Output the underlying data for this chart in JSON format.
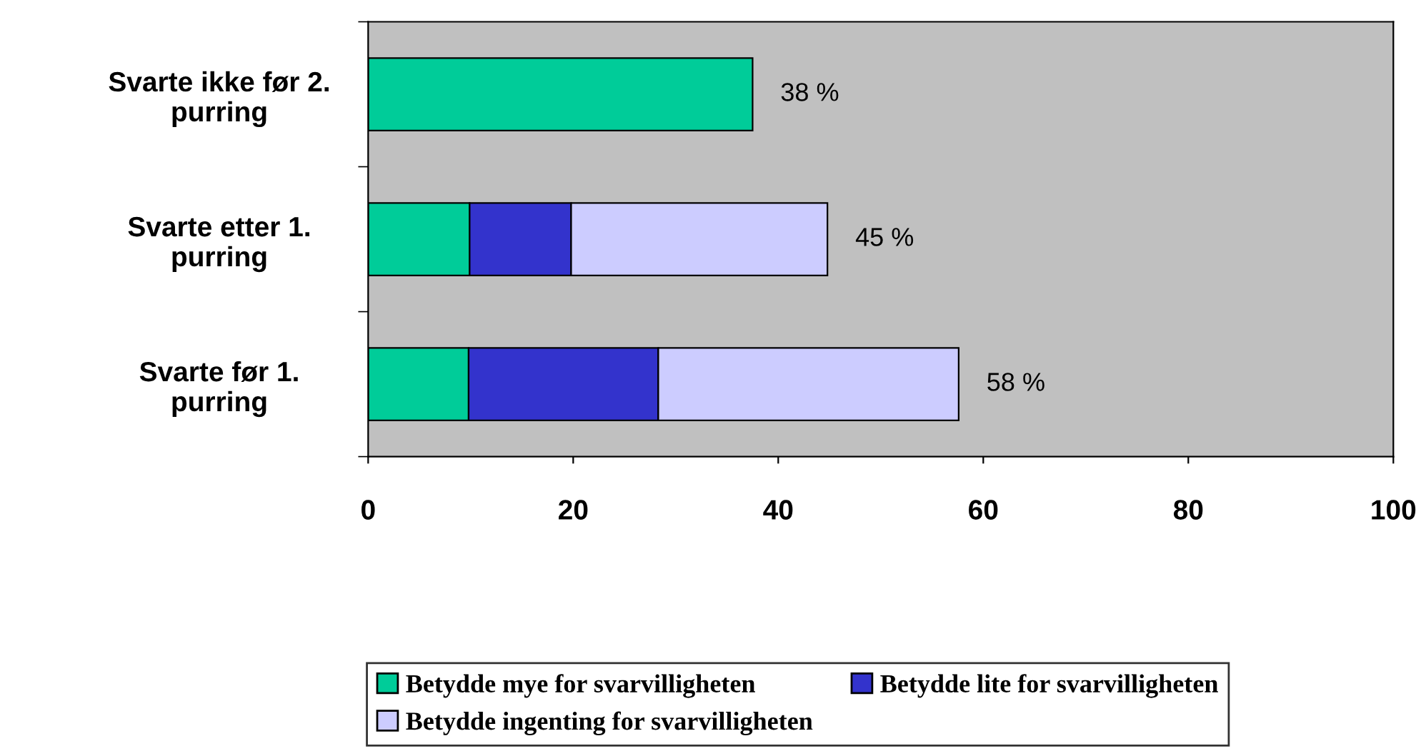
{
  "chart_data": {
    "type": "bar",
    "orientation": "horizontal",
    "stacked": true,
    "categories": [
      "Svarte ikke før 2.\npurring",
      "Svarte etter 1.\npurring",
      "Svarte før 1.\npurring"
    ],
    "series": [
      {
        "name": "Betydde mye for svarvilligheten",
        "color": "#00cc99",
        "values": [
          37.5,
          9.9,
          9.8
        ]
      },
      {
        "name": "Betydde lite for svarvilligheten",
        "color": "#3333cc",
        "values": [
          null,
          9.9,
          18.5
        ]
      },
      {
        "name": "Betydde ingenting for svarvilligheten",
        "color": "#ccccff",
        "values": [
          null,
          25,
          29.3
        ]
      }
    ],
    "totals": [
      "38 %",
      "45 %",
      "58 %"
    ],
    "xlim": [
      0,
      100
    ],
    "xticks": [
      0,
      20,
      40,
      60,
      80,
      100
    ],
    "grid": false,
    "legend": "bottom"
  }
}
